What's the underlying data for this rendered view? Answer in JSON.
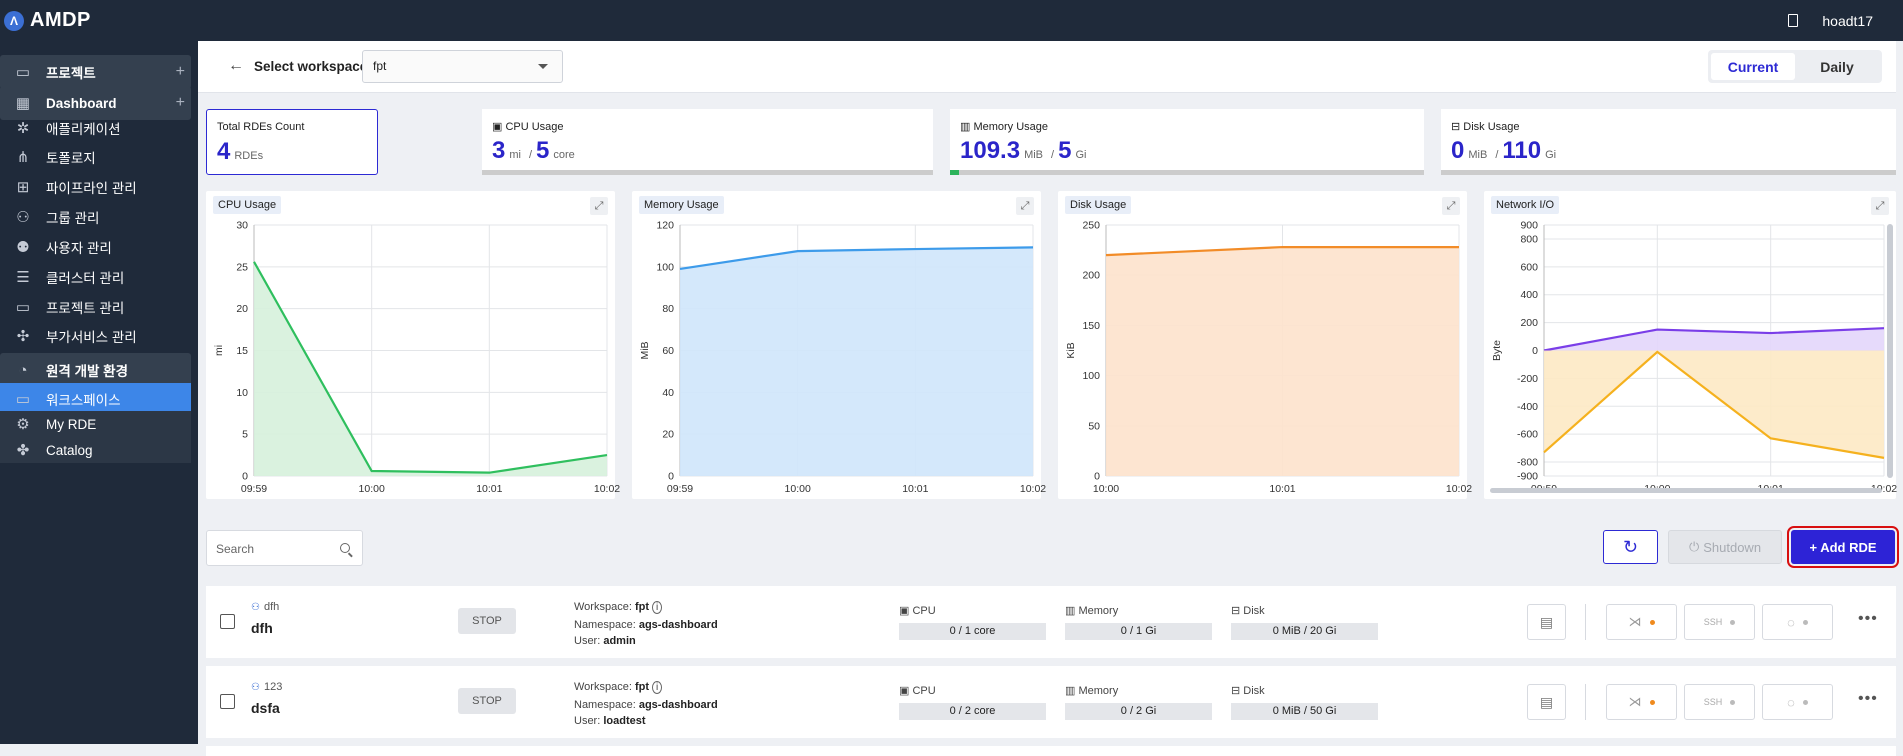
{
  "app": {
    "name": "AMDP",
    "user": "hoadt17"
  },
  "sidebar": {
    "items": [
      {
        "label": "프로젝트",
        "icon": "folder-icon",
        "type": "group",
        "plus": "+"
      },
      {
        "label": "Dashboard",
        "icon": "dashboard-icon",
        "type": "group",
        "plus": "+"
      },
      {
        "label": "애플리케이션",
        "icon": "application-icon"
      },
      {
        "label": "토폴로지",
        "icon": "topology-icon"
      },
      {
        "label": "파이프라인 관리",
        "icon": "pipeline-icon"
      },
      {
        "label": "그룹 관리",
        "icon": "group-icon"
      },
      {
        "label": "사용자 관리",
        "icon": "user-settings-icon"
      },
      {
        "label": "클러스터 관리",
        "icon": "cluster-icon"
      },
      {
        "label": "프로젝트 관리",
        "icon": "folder-icon"
      },
      {
        "label": "부가서비스 관리",
        "icon": "addon-icon"
      },
      {
        "label": "원격 개발 환경",
        "icon": "remote-dev-icon",
        "type": "group"
      },
      {
        "label": "워크스페이스",
        "icon": "workspace-icon",
        "type": "active"
      },
      {
        "label": "My RDE",
        "icon": "gear-icon",
        "type": "sub"
      },
      {
        "label": "Catalog",
        "icon": "puzzle-icon",
        "type": "sub"
      }
    ]
  },
  "workspace": {
    "label": "Select workspace",
    "value": "fpt"
  },
  "view_toggle": {
    "current": "Current",
    "daily": "Daily"
  },
  "stats": {
    "rdes": {
      "title": "Total RDEs Count",
      "value": "4",
      "unit": "RDEs"
    },
    "cpu": {
      "title": "CPU Usage",
      "used": "3",
      "used_unit": "mi",
      "total": "5",
      "total_unit": "core",
      "fraction": 0.0
    },
    "memory": {
      "title": "Memory Usage",
      "used": "109.3",
      "used_unit": "MiB",
      "total": "5",
      "total_unit": "Gi",
      "fraction": 0.02
    },
    "disk": {
      "title": "Disk Usage",
      "used": "0",
      "used_unit": "MiB",
      "total": "110",
      "total_unit": "Gi",
      "fraction": 0.0
    },
    "separator": "/"
  },
  "chart_data": [
    {
      "type": "area",
      "title": "CPU Usage",
      "ylabel": "mi",
      "x": [
        "09:59",
        "10:00",
        "10:01",
        "10:02"
      ],
      "ylim": [
        0,
        30
      ],
      "yticks": [
        0,
        5,
        10,
        15,
        20,
        25,
        30
      ],
      "series": [
        {
          "values": [
            25.6,
            0.6,
            0.4,
            2.5
          ]
        }
      ],
      "color": "#2fbf5e",
      "fill": "#d6f1dc"
    },
    {
      "type": "area",
      "title": "Memory Usage",
      "ylabel": "MiB",
      "x": [
        "09:59",
        "10:00",
        "10:01",
        "10:02"
      ],
      "ylim": [
        0,
        120
      ],
      "yticks": [
        0,
        20,
        40,
        60,
        80,
        100,
        120
      ],
      "series": [
        {
          "values": [
            99,
            107.5,
            108.5,
            109.3
          ]
        }
      ],
      "color": "#3d9bea",
      "fill": "#cfe5fb"
    },
    {
      "type": "area",
      "title": "Disk Usage",
      "ylabel": "KiB",
      "x": [
        "10:00",
        "10:01",
        "10:02"
      ],
      "ylim": [
        0,
        250
      ],
      "yticks": [
        0,
        50,
        100,
        150,
        200,
        250
      ],
      "series": [
        {
          "values": [
            220,
            228,
            228
          ]
        }
      ],
      "color": "#f28c28",
      "fill": "#fde2cc"
    },
    {
      "type": "area",
      "title": "Network I/O",
      "ylabel": "Byte",
      "x": [
        "09:59",
        "10:00",
        "10:01",
        "10:02"
      ],
      "ylim": [
        -900,
        900
      ],
      "yticks": [
        -900,
        -800,
        -600,
        -400,
        -200,
        0,
        200,
        400,
        600,
        800,
        900
      ],
      "series": [
        {
          "values": [
            0,
            150,
            125,
            160
          ],
          "color": "#7a3ee8",
          "fill": "#e3d6fb"
        },
        {
          "values": [
            -730,
            -10,
            -630,
            -770
          ],
          "color": "#f5b11e",
          "fill": "#fde9c4"
        }
      ]
    }
  ],
  "toolbar": {
    "search_placeholder": "Search",
    "shutdown": "Shutdown",
    "add": "+ Add RDE"
  },
  "rows": [
    {
      "sub": "dfh",
      "name": "dfh",
      "status": "STOP",
      "ws_label": "Workspace:",
      "workspace": "fpt",
      "ns_label": "Namespace:",
      "namespace": "ags-dashboard",
      "user_label": "User:",
      "user": "admin",
      "cpu_label": "CPU",
      "cpu": "0 / 1 core",
      "mem_label": "Memory",
      "memory": "0 / 1 Gi",
      "disk_label": "Disk",
      "disk": "0 MiB / 20 Gi",
      "ssh": "SSH"
    },
    {
      "sub": "123",
      "name": "dsfa",
      "status": "STOP",
      "ws_label": "Workspace:",
      "workspace": "fpt",
      "ns_label": "Namespace:",
      "namespace": "ags-dashboard",
      "user_label": "User:",
      "user": "loadtest",
      "cpu_label": "CPU",
      "cpu": "0 / 2 core",
      "mem_label": "Memory",
      "memory": "0 / 2 Gi",
      "disk_label": "Disk",
      "disk": "0 MiB / 50 Gi",
      "ssh": "SSH"
    }
  ]
}
